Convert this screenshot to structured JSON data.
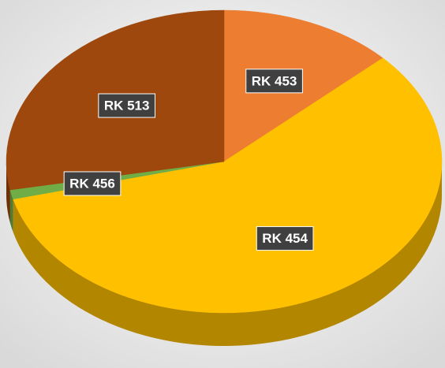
{
  "chart_data": {
    "type": "pie3d",
    "categories": [
      "RK 453",
      "RK 454",
      "RK 456",
      "RK 513"
    ],
    "values": [
      13,
      58,
      1,
      28
    ],
    "colors": [
      "#ed7d31",
      "#ffc000",
      "#70ad47",
      "#9e480e"
    ],
    "side_colors": [
      "#b05a1e",
      "#b38600",
      "#4e7d30",
      "#6e3008"
    ]
  }
}
